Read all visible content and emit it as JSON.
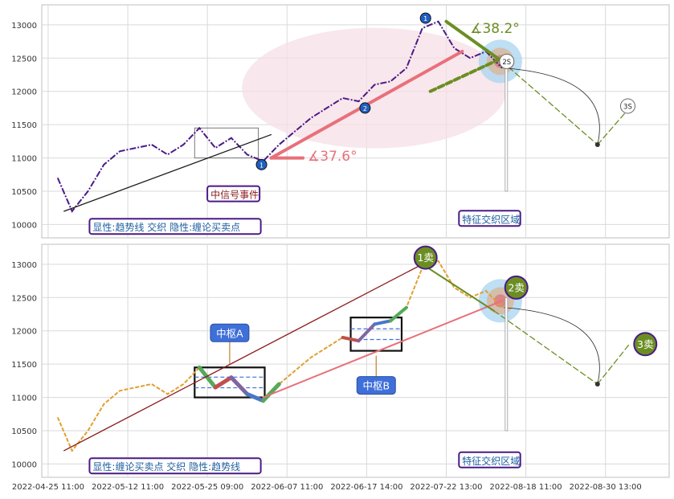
{
  "chart_data": [
    {
      "type": "line",
      "panel": "top",
      "title": "",
      "ylim": [
        9800,
        13300
      ],
      "yticks": [
        10000,
        10500,
        11000,
        11500,
        12000,
        12500,
        13000
      ],
      "grid": true,
      "price_series": {
        "name": "",
        "color": "#4b1a86",
        "x": [
          0.6,
          1.5,
          2.5,
          3.5,
          4.5,
          5.5,
          6.5,
          7.5,
          8.5,
          9.5,
          10.5,
          11.5,
          12.5,
          13.5,
          14.5,
          15.5,
          16.5,
          17.5,
          18.5,
          19.5,
          20.5,
          21.5,
          22.5,
          23.5,
          24.5,
          25.5,
          26.5,
          27.5,
          28.5
        ],
        "y": [
          10700,
          10200,
          10500,
          10900,
          11100,
          11150,
          11200,
          11050,
          11200,
          11450,
          11150,
          11300,
          11050,
          10950,
          11200,
          11400,
          11600,
          11750,
          11900,
          11850,
          12100,
          12150,
          12350,
          12950,
          13050,
          12650,
          12500,
          12600,
          12350
        ]
      },
      "trend_lines": [
        {
          "x": [
            1.0,
            14.0
          ],
          "y": [
            10200,
            11350
          ],
          "color": "#1a1a1a"
        },
        {
          "x": [
            14.0,
            16.0
          ],
          "y": [
            11000,
            11000
          ],
          "color": "#e8707a",
          "width": 4
        },
        {
          "x": [
            14.0,
            26.0
          ],
          "y": [
            11000,
            12600
          ],
          "color": "#e8707a",
          "width": 4
        },
        {
          "x": [
            24.0,
            28.5
          ],
          "y": [
            12000,
            12500
          ],
          "color": "#6b8e23",
          "width": 4,
          "dashed": true
        },
        {
          "x": [
            25.0,
            28.5
          ],
          "y": [
            13050,
            12450
          ],
          "color": "#6b8e23",
          "width": 4
        },
        {
          "x": [
            28.5,
            34.5
          ],
          "y": [
            12450,
            11200
          ],
          "color": "#6b8e23",
          "dashed": true
        },
        {
          "x": [
            34.5,
            36.5
          ],
          "y": [
            11200,
            11750
          ],
          "color": "#6b8e23",
          "dashed": true
        }
      ],
      "angles": [
        {
          "label": "∡37.6°",
          "x": 16.3,
          "y": 10960,
          "color": "#e8707a"
        },
        {
          "label": "∡38.2°",
          "x": 26.5,
          "y": 12880,
          "color": "#6b8e23"
        }
      ],
      "point_labels": [
        {
          "label": "2S",
          "x": 28.8,
          "y": 12450
        },
        {
          "label": "3S",
          "x": 36.4,
          "y": 11780
        }
      ],
      "annotations": [
        {
          "text": "中信号事件",
          "x": 10.2,
          "y": 10420,
          "color": "#8b1a1a",
          "border": "#4b1a86"
        },
        {
          "text": "特征交织区域",
          "x": 26.0,
          "y": 10050,
          "color": "#2060a0",
          "border": "#4b1a86"
        },
        {
          "text": "显性:趋势线 交织 隐性:缠论买卖点",
          "x": 2.8,
          "y": 9930,
          "color": "#2060a0",
          "border": "#4b1a86"
        }
      ],
      "markers": [
        {
          "text": "1",
          "x": 13.4,
          "y": 10900,
          "color": "#1f5fbf"
        },
        {
          "text": "2",
          "x": 19.9,
          "y": 11750,
          "color": "#1f5fbf"
        },
        {
          "text": "1",
          "x": 23.7,
          "y": 13100,
          "color": "#1f5fbf"
        }
      ]
    },
    {
      "type": "line",
      "panel": "bottom",
      "title": "",
      "ylim": [
        9800,
        13300
      ],
      "yticks": [
        10000,
        10500,
        11000,
        11500,
        12000,
        12500,
        13000
      ],
      "grid": true,
      "price_series": {
        "name": "",
        "color": "#e0a030",
        "x": [
          0.6,
          1.5,
          2.5,
          3.5,
          4.5,
          5.5,
          6.5,
          7.5,
          8.5,
          9.5,
          10.5,
          11.5,
          12.5,
          13.5,
          14.5,
          15.5,
          16.5,
          17.5,
          18.5,
          19.5,
          20.5,
          21.5,
          22.5,
          23.5,
          24.5,
          25.5,
          26.5,
          27.5,
          28.5
        ],
        "y": [
          10700,
          10200,
          10500,
          10900,
          11100,
          11150,
          11200,
          11050,
          11200,
          11450,
          11150,
          11300,
          11050,
          10950,
          11200,
          11400,
          11600,
          11750,
          11900,
          11850,
          12100,
          12150,
          12350,
          12950,
          13050,
          12650,
          12500,
          12600,
          12350
        ]
      },
      "trend_lines": [
        {
          "x": [
            1.0,
            23.5
          ],
          "y": [
            10200,
            13000
          ],
          "color": "#8b1a1a"
        },
        {
          "x": [
            13.5,
            28.5
          ],
          "y": [
            11000,
            12450
          ],
          "color": "#e8707a",
          "width": 2
        },
        {
          "x": [
            23.5,
            28.0
          ],
          "y": [
            13000,
            12300
          ],
          "color": "#6b8e23",
          "width": 2
        },
        {
          "x": [
            28.0,
            34.5
          ],
          "y": [
            12300,
            11200
          ],
          "color": "#6b8e23",
          "dashed": true
        },
        {
          "x": [
            34.5,
            36.5
          ],
          "y": [
            11200,
            11800
          ],
          "color": "#6b8e23",
          "dashed": true
        }
      ],
      "centers": [
        {
          "label": "中枢A",
          "x0": 9.2,
          "x1": 13.6,
          "y0": 11000,
          "y1": 11450
        },
        {
          "label": "中枢B",
          "x0": 19.0,
          "x1": 22.2,
          "y0": 11700,
          "y1": 12200
        }
      ],
      "signals": [
        {
          "label": "1卖",
          "x": 23.7,
          "y": 13100
        },
        {
          "label": "2卖",
          "x": 29.4,
          "y": 12650
        },
        {
          "label": "3卖",
          "x": 37.5,
          "y": 11800
        }
      ],
      "annotations": [
        {
          "text": "特征交织区域",
          "x": 26.0,
          "y": 10020,
          "color": "#2060a0",
          "border": "#4b1a86"
        },
        {
          "text": "显性:缠论买卖点 交织 隐性:趋势线",
          "x": 2.8,
          "y": 9930,
          "color": "#2060a0",
          "border": "#4b1a86"
        }
      ]
    }
  ],
  "x_tick_labels": [
    "2022-04-25 11:00",
    "2022-05-12 11:00",
    "2022-05-25 09:00",
    "2022-06-07 11:00",
    "2022-06-17 14:00",
    "2022-07-22 13:00",
    "2022-08-18 11:00",
    "2022-08-30 13:00"
  ],
  "x_tick_positions": [
    0,
    5,
    10,
    15,
    20,
    25,
    30,
    35
  ],
  "xlim": [
    -0.4,
    39.0
  ],
  "colors": {
    "grid": "#d9d9d9",
    "frame": "#bfbfbf",
    "highlight_ellipse": "#f6dfe6",
    "blue_zone": "#a8d4f0",
    "center_label_bg": "#3f6fd8",
    "signal_bg": "#6b8e23"
  }
}
